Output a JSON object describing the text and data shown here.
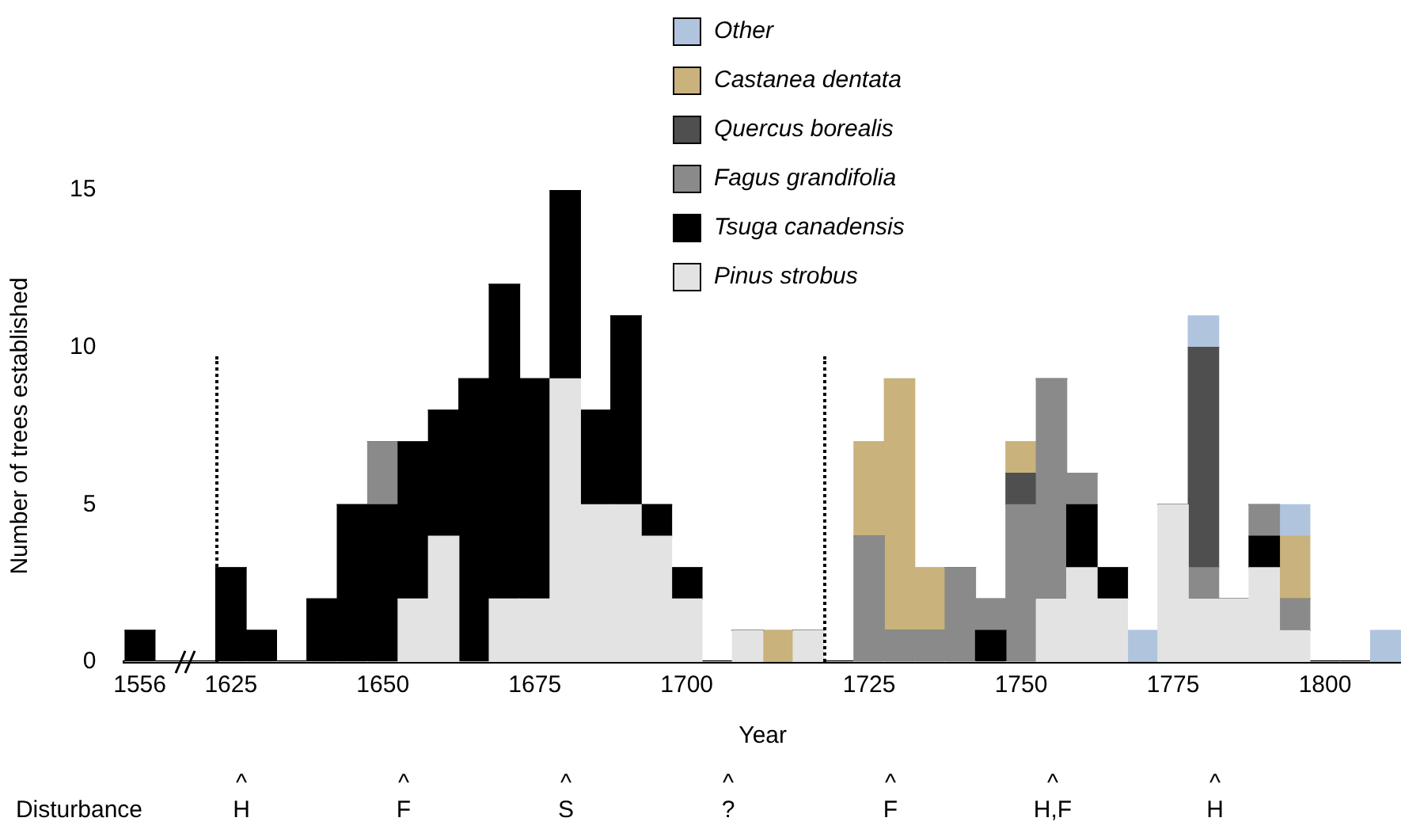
{
  "chart_data": {
    "type": "bar",
    "stacked": true,
    "xlabel": "Year",
    "ylabel": "Number of trees established",
    "categories": [
      "1556",
      null,
      null,
      "1625",
      null,
      null,
      null,
      null,
      "1650",
      null,
      null,
      null,
      null,
      "1675",
      null,
      null,
      null,
      null,
      "1700",
      null,
      null,
      null,
      null,
      null,
      "1725",
      null,
      null,
      null,
      null,
      "1750",
      null,
      null,
      null,
      null,
      "1775",
      null,
      null,
      null,
      null,
      "1800",
      null,
      null
    ],
    "series": [
      {
        "name": "Pinus strobus",
        "color": "#e3e3e3",
        "values": [
          0,
          0,
          0,
          0,
          0,
          0,
          0,
          0,
          0,
          2,
          4,
          0,
          2,
          2,
          9,
          5,
          5,
          4,
          2,
          0,
          1,
          0,
          1,
          0,
          0,
          0,
          0,
          0,
          0,
          0,
          2,
          3,
          2,
          0,
          5,
          2,
          2,
          3,
          1,
          0,
          0,
          0
        ]
      },
      {
        "name": "Tsuga canadensis",
        "color": "#000000",
        "values": [
          1,
          0,
          0,
          3,
          1,
          0,
          2,
          5,
          5,
          5,
          4,
          9,
          10,
          7,
          6,
          3,
          6,
          1,
          1,
          0,
          0,
          0,
          0,
          0,
          0,
          0,
          0,
          0,
          1,
          0,
          0,
          2,
          1,
          0,
          0,
          0,
          0,
          1,
          0,
          0,
          0,
          0
        ]
      },
      {
        "name": "Fagus grandifolia",
        "color": "#8a8a8a",
        "values": [
          0,
          0,
          0,
          0,
          0,
          0,
          0,
          0,
          2,
          0,
          0,
          0,
          0,
          0,
          0,
          0,
          0,
          0,
          0,
          0,
          0,
          0,
          0,
          0,
          4,
          1,
          1,
          3,
          1,
          5,
          7,
          1,
          0,
          0,
          0,
          1,
          0,
          1,
          1,
          0,
          0,
          0
        ]
      },
      {
        "name": "Quercus borealis",
        "color": "#4f4f4f",
        "values": [
          0,
          0,
          0,
          0,
          0,
          0,
          0,
          0,
          0,
          0,
          0,
          0,
          0,
          0,
          0,
          0,
          0,
          0,
          0,
          0,
          0,
          0,
          0,
          0,
          0,
          0,
          0,
          0,
          0,
          1,
          0,
          0,
          0,
          0,
          0,
          7,
          0,
          0,
          0,
          0,
          0,
          0
        ]
      },
      {
        "name": "Castanea dentata",
        "color": "#c9b27c",
        "values": [
          0,
          0,
          0,
          0,
          0,
          0,
          0,
          0,
          0,
          0,
          0,
          0,
          0,
          0,
          0,
          0,
          0,
          0,
          0,
          0,
          0,
          1,
          0,
          0,
          3,
          8,
          2,
          0,
          0,
          1,
          0,
          0,
          0,
          0,
          0,
          0,
          0,
          0,
          2,
          0,
          0,
          0
        ]
      },
      {
        "name": "Other",
        "color": "#b0c4de",
        "values": [
          0,
          0,
          0,
          0,
          0,
          0,
          0,
          0,
          0,
          0,
          0,
          0,
          0,
          0,
          0,
          0,
          0,
          0,
          0,
          0,
          0,
          0,
          0,
          0,
          0,
          0,
          0,
          0,
          0,
          0,
          0,
          0,
          0,
          1,
          0,
          1,
          0,
          0,
          1,
          0,
          0,
          1
        ]
      }
    ],
    "ylim": [
      0,
      15
    ],
    "yticks": [
      0,
      5,
      10,
      15
    ],
    "grid": false,
    "legend": "top",
    "annotations": [
      "Disturbance",
      "^\nH",
      "^\nF",
      "^\nS",
      "^\n?",
      "^\nF",
      "^\nH,F",
      "^\nH"
    ]
  }
}
